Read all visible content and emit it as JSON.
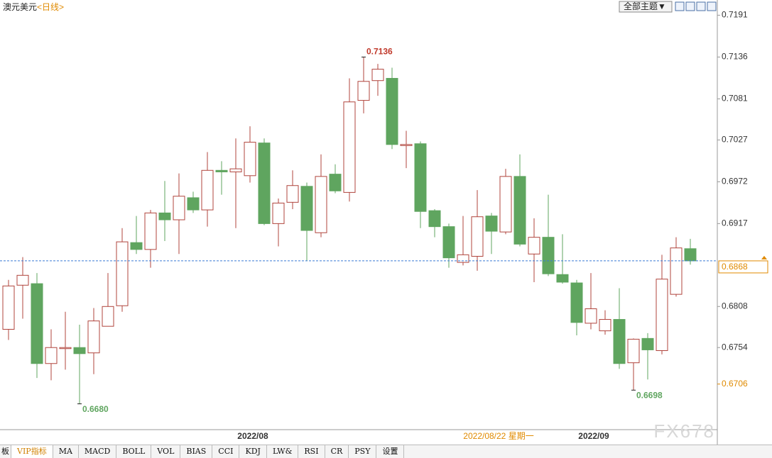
{
  "chart_data": {
    "type": "candlestick",
    "title": "澳元美元",
    "period": "<日线>",
    "theme_button": "全部主题▼",
    "watermark": "FX678",
    "cursor_label": "2022/08/22 星期一",
    "categories": [
      null,
      null,
      null,
      null,
      null,
      null,
      null,
      null,
      null,
      null,
      null,
      null,
      null,
      null,
      null,
      null,
      null,
      "2022/08",
      null,
      null,
      null,
      null,
      null,
      null,
      null,
      null,
      null,
      null,
      null,
      null,
      null,
      null,
      null,
      null,
      null,
      null,
      null,
      null,
      null,
      null,
      null,
      "2022/09",
      null,
      null,
      null,
      null,
      null,
      null,
      null
    ],
    "open": [
      0.6778,
      0.6836,
      0.6838,
      0.6733,
      0.6753,
      0.6754,
      0.6747,
      0.6782,
      0.6809,
      0.6892,
      0.6883,
      0.6931,
      0.6922,
      0.6951,
      0.6935,
      0.6987,
      0.6985,
      0.698,
      0.7023,
      0.6917,
      0.6945,
      0.6966,
      0.6905,
      0.6982,
      0.6958,
      0.7079,
      0.7105,
      0.7108,
      0.702,
      0.7022,
      0.6934,
      0.6913,
      0.6866,
      0.6874,
      0.6927,
      0.6906,
      0.6979,
      0.6877,
      0.6899,
      0.685,
      0.6839,
      0.6786,
      0.6776,
      0.6791,
      0.6734,
      0.6766,
      0.675,
      0.6824,
      0.6884
    ],
    "high": [
      0.6843,
      0.6873,
      0.6852,
      0.6778,
      0.6801,
      0.6784,
      0.6806,
      0.6852,
      0.6911,
      0.6927,
      0.6935,
      0.6973,
      0.6983,
      0.6959,
      0.7011,
      0.6999,
      0.7029,
      0.7045,
      0.7029,
      0.695,
      0.6987,
      0.6971,
      0.7008,
      0.6995,
      0.7108,
      0.7136,
      0.7127,
      0.7122,
      0.7039,
      0.7025,
      0.6936,
      0.6917,
      0.6927,
      0.6961,
      0.6931,
      0.6989,
      0.7008,
      0.6924,
      0.6955,
      0.6903,
      0.6843,
      0.6852,
      0.6803,
      0.6832,
      0.6766,
      0.6773,
      0.6876,
      0.6899,
      0.6897
    ],
    "low": [
      0.6764,
      0.6792,
      0.6714,
      0.6711,
      0.6725,
      0.668,
      0.6719,
      0.6782,
      0.6801,
      0.6877,
      0.6859,
      0.6894,
      0.6877,
      0.6931,
      0.6913,
      0.6955,
      0.6911,
      0.6971,
      0.6915,
      0.6887,
      0.6936,
      0.6868,
      0.6899,
      0.6957,
      0.6946,
      0.7062,
      0.7085,
      0.7015,
      0.699,
      0.6911,
      0.6899,
      0.6859,
      0.6862,
      0.6855,
      0.6877,
      0.6903,
      0.6887,
      0.684,
      0.6848,
      0.6838,
      0.677,
      0.6778,
      0.6771,
      0.6726,
      0.6698,
      0.6712,
      0.6745,
      0.6821,
      0.6863
    ],
    "close": [
      0.6835,
      0.6849,
      0.6733,
      0.6754,
      0.6754,
      0.6746,
      0.6789,
      0.6808,
      0.6893,
      0.6883,
      0.6931,
      0.6922,
      0.6953,
      0.6935,
      0.6987,
      0.6985,
      0.6989,
      0.7024,
      0.6917,
      0.6944,
      0.6967,
      0.6908,
      0.6979,
      0.696,
      0.7077,
      0.7104,
      0.712,
      0.7021,
      0.7021,
      0.6933,
      0.6913,
      0.6872,
      0.6876,
      0.6926,
      0.6907,
      0.6979,
      0.689,
      0.6899,
      0.6851,
      0.684,
      0.6787,
      0.6805,
      0.6791,
      0.6733,
      0.6765,
      0.6751,
      0.6844,
      0.6885,
      0.6868
    ],
    "up_color": "#b0443c",
    "down_color": "#5fa55f",
    "ylim": [
      0.6647,
      0.7211
    ],
    "yticks": [
      0.7191,
      0.7136,
      0.7081,
      0.7027,
      0.6972,
      0.6917,
      0.6808,
      0.6754
    ],
    "current_price": 0.6868,
    "low_marker": 0.6706,
    "annotations": [
      {
        "label": "0.7136",
        "value": 0.7136
      },
      {
        "label": "0.6680",
        "value": 0.668
      },
      {
        "label": "0.6698",
        "value": 0.6698
      }
    ],
    "toolbar": [
      "板",
      "VIP指标",
      "MA",
      "MACD",
      "BOLL",
      "VOL",
      "BIAS",
      "CCI",
      "KDJ",
      "LW&",
      "RSI",
      "CR",
      "PSY",
      "设置"
    ]
  }
}
